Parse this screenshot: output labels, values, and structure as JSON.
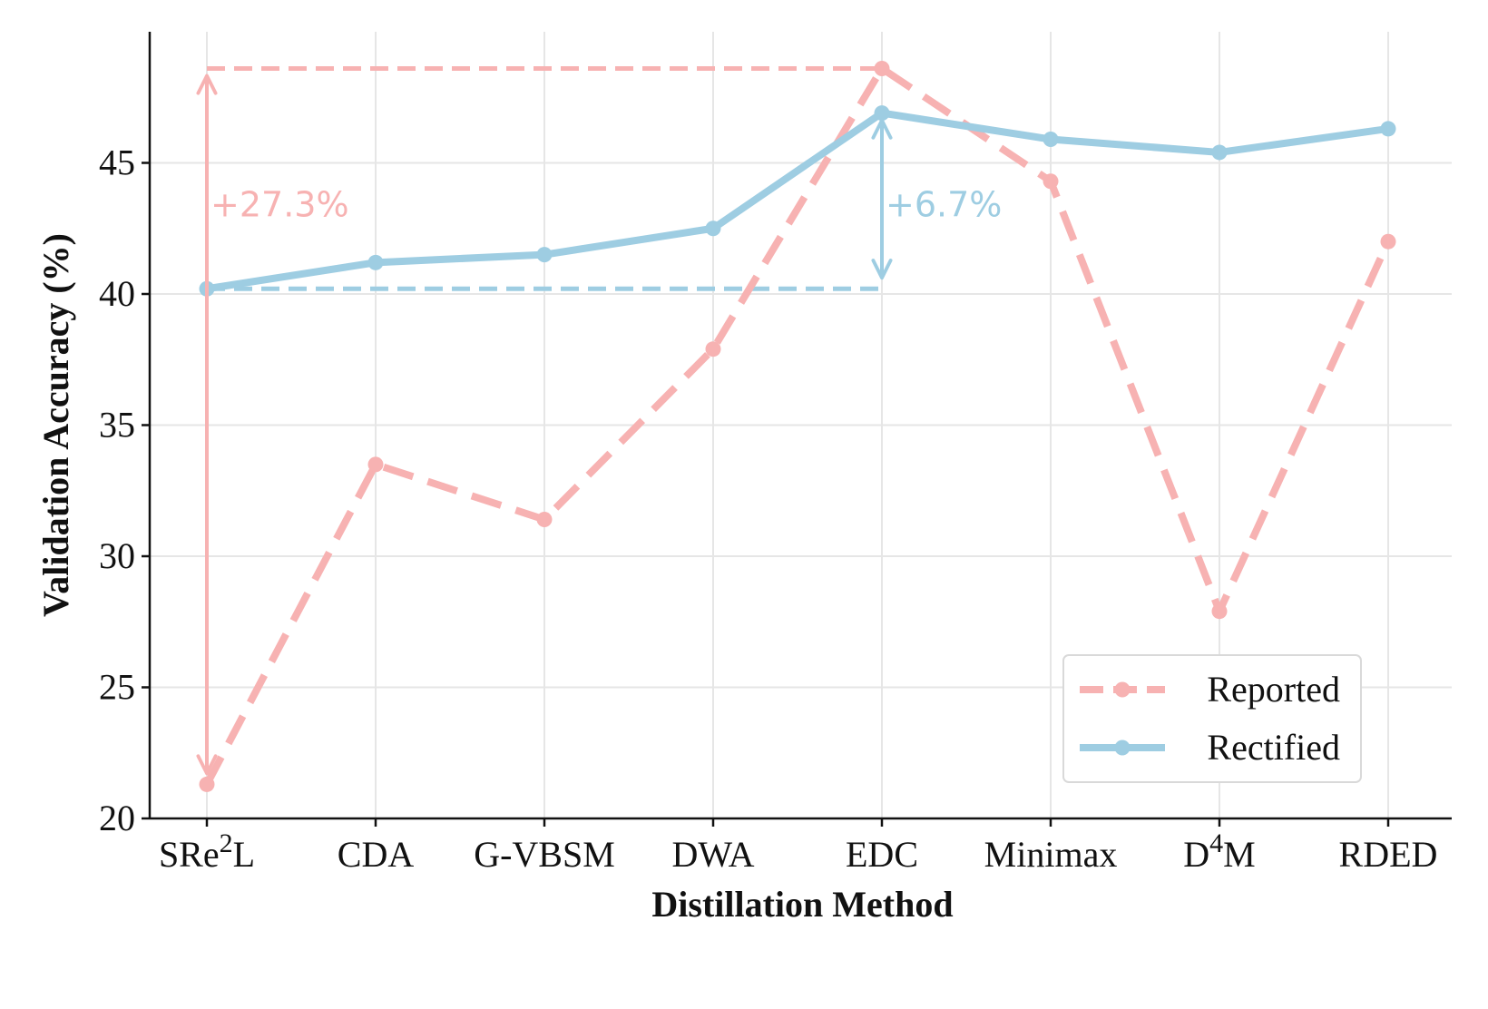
{
  "chart_data": {
    "type": "line",
    "title": "",
    "xlabel": "Distillation Method",
    "ylabel": "Validation Accuracy (%)",
    "categories": [
      "SRe²L",
      "CDA",
      "G-VBSM",
      "DWA",
      "EDC",
      "Minimax",
      "D⁴M",
      "RDED"
    ],
    "category_ticks": [
      {
        "base": "SRe",
        "sup": "2",
        "rest": "L"
      },
      {
        "base": "CDA",
        "sup": "",
        "rest": ""
      },
      {
        "base": "G-VBSM",
        "sup": "",
        "rest": ""
      },
      {
        "base": "DWA",
        "sup": "",
        "rest": ""
      },
      {
        "base": "EDC",
        "sup": "",
        "rest": ""
      },
      {
        "base": "Minimax",
        "sup": "",
        "rest": ""
      },
      {
        "base": "D",
        "sup": "4",
        "rest": "M"
      },
      {
        "base": "RDED",
        "sup": "",
        "rest": ""
      }
    ],
    "ylim": [
      20,
      50
    ],
    "yticks": [
      20,
      25,
      30,
      35,
      40,
      45
    ],
    "grid": true,
    "legend_position": "bottom-right",
    "series": [
      {
        "name": "Reported",
        "style": "dashed",
        "color": "#f7b2b2",
        "values": [
          21.3,
          33.5,
          31.4,
          37.9,
          48.6,
          44.3,
          27.9,
          42.0
        ]
      },
      {
        "name": "Rectified",
        "style": "solid",
        "color": "#9ecde2",
        "values": [
          40.2,
          41.2,
          41.5,
          42.5,
          46.9,
          45.9,
          45.4,
          46.3
        ]
      }
    ],
    "annotations": [
      {
        "text": "+27.3%",
        "color": "#f7b2b2",
        "series": "Reported",
        "arrow_category": 0,
        "label_category": 0,
        "from_value": 21.3,
        "to_value": 48.6,
        "dashed_from_category": 0,
        "dashed_to_category": 4,
        "dashed_value": 48.6,
        "label_value": 43.9
      },
      {
        "text": "+6.7%",
        "color": "#9ecde2",
        "series": "Rectified",
        "arrow_category": 4,
        "label_category": 4,
        "from_value": 40.2,
        "to_value": 46.9,
        "dashed_from_category": 0,
        "dashed_to_category": 4,
        "dashed_value": 40.2,
        "label_value": 43.9
      }
    ]
  }
}
